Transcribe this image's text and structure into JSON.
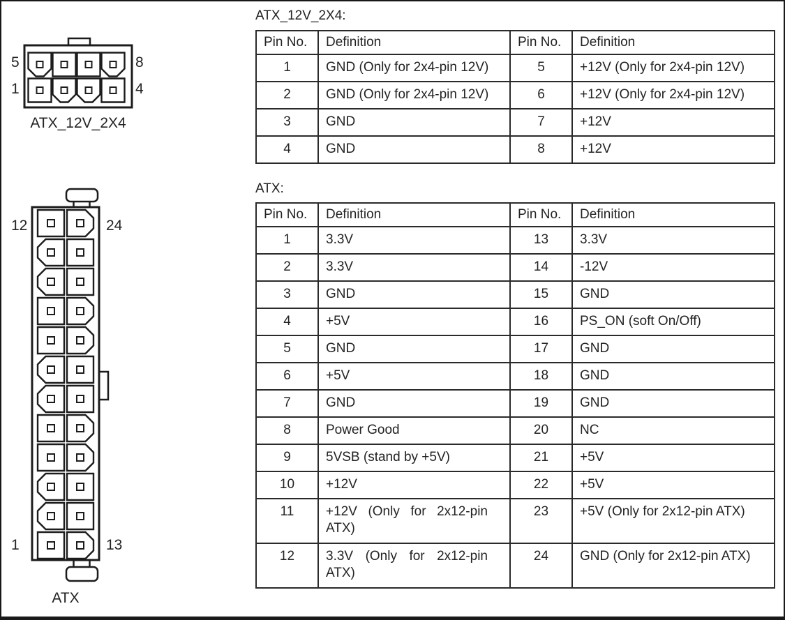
{
  "page": {
    "background": "#ffffff",
    "border_color": "#191919",
    "ink_color": "#232323"
  },
  "diagrams": {
    "atx12v2x4": {
      "caption": "ATX_12V_2X4",
      "pin_labels": {
        "top_left": "5",
        "top_right": "8",
        "bottom_left": "1",
        "bottom_right": "4"
      },
      "rows": 2,
      "cols": 4,
      "keying": [
        [
          "chamfer",
          "square",
          "square",
          "chamfer"
        ],
        [
          "square",
          "chamfer",
          "chamfer",
          "square"
        ]
      ]
    },
    "atx": {
      "caption": "ATX",
      "pin_labels": {
        "top_left": "12",
        "top_right": "24",
        "bottom_left": "1",
        "bottom_right": "13"
      },
      "rows": 12,
      "cols": 2,
      "keying": [
        [
          "square",
          "chamfer"
        ],
        [
          "chamfer",
          "square"
        ],
        [
          "chamfer",
          "square"
        ],
        [
          "square",
          "chamfer"
        ],
        [
          "square",
          "chamfer"
        ],
        [
          "chamfer",
          "square"
        ],
        [
          "chamfer",
          "square"
        ],
        [
          "square",
          "chamfer"
        ],
        [
          "square",
          "chamfer"
        ],
        [
          "chamfer",
          "square"
        ],
        [
          "chamfer",
          "square"
        ],
        [
          "square",
          "chamfer"
        ]
      ]
    }
  },
  "tables": [
    {
      "title": "ATX_12V_2X4:",
      "headers": [
        "Pin No.",
        "Definition",
        "Pin No.",
        "Definition"
      ],
      "rows": [
        [
          "1",
          "GND (Only for 2x4-pin 12V)",
          "5",
          "+12V (Only for 2x4-pin 12V)"
        ],
        [
          "2",
          "GND (Only for 2x4-pin 12V)",
          "6",
          "+12V (Only for 2x4-pin 12V)"
        ],
        [
          "3",
          "GND",
          "7",
          "+12V"
        ],
        [
          "4",
          "GND",
          "8",
          "+12V"
        ]
      ]
    },
    {
      "title": "ATX:",
      "headers": [
        "Pin No.",
        "Definition",
        "Pin No.",
        "Definition"
      ],
      "rows": [
        [
          "1",
          "3.3V",
          "13",
          "3.3V"
        ],
        [
          "2",
          "3.3V",
          "14",
          "-12V"
        ],
        [
          "3",
          "GND",
          "15",
          "GND"
        ],
        [
          "4",
          "+5V",
          "16",
          "PS_ON (soft On/Off)"
        ],
        [
          "5",
          "GND",
          "17",
          "GND"
        ],
        [
          "6",
          "+5V",
          "18",
          "GND"
        ],
        [
          "7",
          "GND",
          "19",
          "GND"
        ],
        [
          "8",
          "Power Good",
          "20",
          "NC"
        ],
        [
          "9",
          "5VSB (stand by +5V)",
          "21",
          "+5V"
        ],
        [
          "10",
          "+12V",
          "22",
          "+5V"
        ],
        [
          "11",
          "+12V (Only for 2x12-pin ATX)",
          "23",
          "+5V (Only for 2x12-pin ATX)"
        ],
        [
          "12",
          "3.3V (Only for 2x12-pin ATX)",
          "24",
          "GND (Only for 2x12-pin ATX)"
        ]
      ]
    }
  ]
}
